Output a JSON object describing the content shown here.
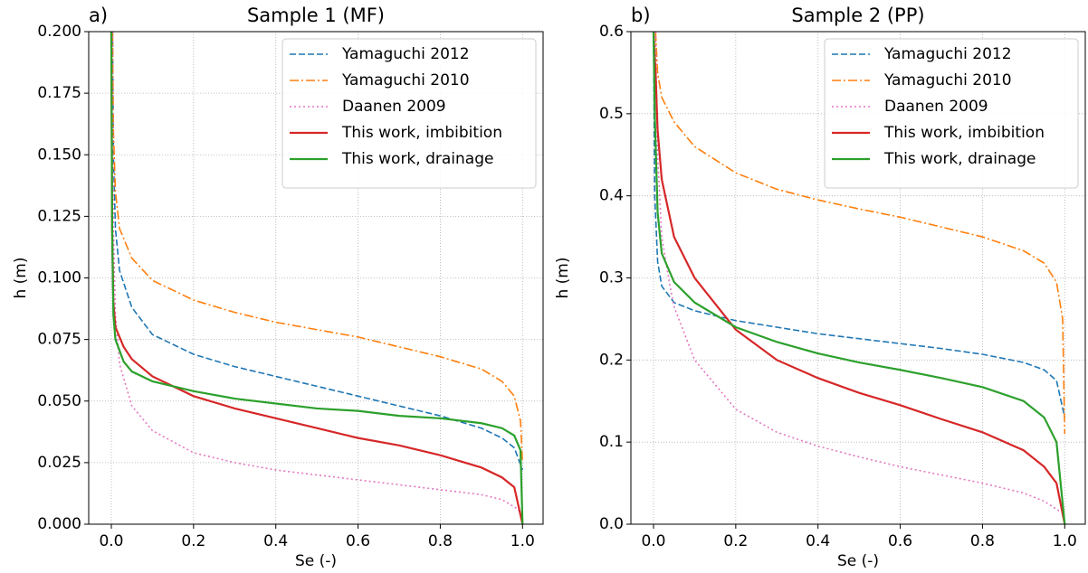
{
  "chart_data": [
    {
      "type": "line",
      "panel_label": "a)",
      "title": "Sample 1 (MF)",
      "x_label": "Se (-)",
      "y_label": "h (m)",
      "xlim": [
        -0.055,
        1.05
      ],
      "ylim": [
        0,
        0.2
      ],
      "xticks": [
        {
          "value": 0,
          "label": "0.0"
        },
        0.2,
        0.4,
        0.6,
        0.8,
        {
          "value": 1,
          "label": "1.0"
        }
      ],
      "yticks": [
        {
          "value": 0,
          "label": "0.000"
        },
        {
          "value": 0.025,
          "label": "0.025"
        },
        {
          "value": 0.05,
          "label": "0.050"
        },
        {
          "value": 0.075,
          "label": "0.075"
        },
        {
          "value": 0.1,
          "label": "0.100"
        },
        {
          "value": 0.125,
          "label": "0.125"
        },
        {
          "value": 0.15,
          "label": "0.150"
        },
        {
          "value": 0.175,
          "label": "0.175"
        },
        {
          "value": 0.2,
          "label": "0.200"
        }
      ],
      "grid": true,
      "legend": "upper right",
      "series": [
        {
          "name": "Yamaguchi 2012",
          "color": "#1f77b4",
          "dash": "dashed",
          "x": [
            0.003,
            0.005,
            0.01,
            0.02,
            0.05,
            0.1,
            0.2,
            0.3,
            0.4,
            0.5,
            0.6,
            0.7,
            0.8,
            0.9,
            0.95,
            0.98,
            1.0
          ],
          "values": [
            0.2,
            0.15,
            0.12,
            0.103,
            0.088,
            0.077,
            0.069,
            0.064,
            0.06,
            0.056,
            0.052,
            0.048,
            0.044,
            0.039,
            0.035,
            0.031,
            0.022
          ]
        },
        {
          "name": "Yamaguchi 2010",
          "color": "#ff7f0e",
          "dash": "dashdot",
          "x": [
            0.003,
            0.005,
            0.01,
            0.02,
            0.05,
            0.1,
            0.2,
            0.3,
            0.4,
            0.5,
            0.6,
            0.7,
            0.8,
            0.9,
            0.95,
            0.98,
            0.995,
            1.0
          ],
          "values": [
            0.2,
            0.16,
            0.135,
            0.12,
            0.108,
            0.099,
            0.091,
            0.086,
            0.082,
            0.079,
            0.076,
            0.072,
            0.068,
            0.063,
            0.058,
            0.052,
            0.042,
            0.025
          ]
        },
        {
          "name": "Daanen 2009",
          "color": "#e377c2",
          "dash": "dotted",
          "x": [
            0.003,
            0.005,
            0.01,
            0.02,
            0.05,
            0.1,
            0.2,
            0.3,
            0.4,
            0.5,
            0.6,
            0.7,
            0.8,
            0.9,
            0.95,
            0.99,
            1.0
          ],
          "values": [
            0.2,
            0.12,
            0.085,
            0.065,
            0.048,
            0.038,
            0.029,
            0.025,
            0.022,
            0.02,
            0.018,
            0.016,
            0.014,
            0.012,
            0.01,
            0.006,
            0.002
          ]
        },
        {
          "name": "This work, imbibition",
          "color": "#d62728",
          "dash": "solid",
          "x": [
            0,
            0.002,
            0.005,
            0.01,
            0.03,
            0.05,
            0.1,
            0.2,
            0.3,
            0.4,
            0.5,
            0.6,
            0.7,
            0.8,
            0.9,
            0.95,
            0.98,
            1.0
          ],
          "values": [
            0.2,
            0.12,
            0.09,
            0.08,
            0.072,
            0.067,
            0.06,
            0.052,
            0.047,
            0.043,
            0.039,
            0.035,
            0.032,
            0.028,
            0.023,
            0.019,
            0.015,
            0
          ]
        },
        {
          "name": "This work, drainage",
          "color": "#2ca02c",
          "dash": "solid",
          "x": [
            0,
            0.002,
            0.005,
            0.01,
            0.03,
            0.05,
            0.1,
            0.2,
            0.3,
            0.4,
            0.5,
            0.6,
            0.7,
            0.8,
            0.9,
            0.95,
            0.98,
            0.995,
            1.0
          ],
          "values": [
            0.2,
            0.12,
            0.085,
            0.075,
            0.066,
            0.062,
            0.058,
            0.054,
            0.051,
            0.049,
            0.047,
            0.046,
            0.044,
            0.043,
            0.041,
            0.039,
            0.036,
            0.03,
            0
          ]
        }
      ]
    },
    {
      "type": "line",
      "panel_label": "b)",
      "title": "Sample 2 (PP)",
      "x_label": "Se (-)",
      "y_label": "h (m)",
      "xlim": [
        -0.055,
        1.05
      ],
      "ylim": [
        0,
        0.6
      ],
      "xticks": [
        {
          "value": 0,
          "label": "0.0"
        },
        0.2,
        0.4,
        0.6,
        0.8,
        {
          "value": 1,
          "label": "1.0"
        }
      ],
      "yticks": [
        {
          "value": 0,
          "label": "0.0"
        },
        0.1,
        0.2,
        0.3,
        0.4,
        0.5,
        0.6
      ],
      "grid": true,
      "legend": "upper right",
      "series": [
        {
          "name": "Yamaguchi 2012",
          "color": "#1f77b4",
          "dash": "dashed",
          "x": [
            0,
            0.003,
            0.01,
            0.02,
            0.05,
            0.1,
            0.2,
            0.3,
            0.4,
            0.5,
            0.6,
            0.7,
            0.8,
            0.9,
            0.95,
            0.98,
            1.0
          ],
          "values": [
            0.6,
            0.4,
            0.32,
            0.29,
            0.27,
            0.26,
            0.248,
            0.24,
            0.232,
            0.226,
            0.22,
            0.214,
            0.207,
            0.197,
            0.188,
            0.175,
            0.13
          ]
        },
        {
          "name": "Yamaguchi 2010",
          "color": "#ff7f0e",
          "dash": "dashdot",
          "x": [
            0.005,
            0.01,
            0.02,
            0.05,
            0.1,
            0.2,
            0.3,
            0.4,
            0.5,
            0.6,
            0.7,
            0.8,
            0.9,
            0.95,
            0.98,
            0.995,
            1.0
          ],
          "values": [
            0.6,
            0.55,
            0.52,
            0.49,
            0.46,
            0.428,
            0.408,
            0.395,
            0.384,
            0.374,
            0.362,
            0.35,
            0.333,
            0.318,
            0.295,
            0.25,
            0.11
          ]
        },
        {
          "name": "Daanen 2009",
          "color": "#e377c2",
          "dash": "dotted",
          "x": [
            0.005,
            0.01,
            0.02,
            0.04,
            0.05,
            0.1,
            0.2,
            0.3,
            0.4,
            0.5,
            0.6,
            0.7,
            0.8,
            0.9,
            0.95,
            0.99
          ],
          "values": [
            0.6,
            0.45,
            0.35,
            0.29,
            0.265,
            0.2,
            0.14,
            0.112,
            0.095,
            0.082,
            0.07,
            0.06,
            0.05,
            0.038,
            0.028,
            0.015
          ]
        },
        {
          "name": "This work, imbibition",
          "color": "#d62728",
          "dash": "solid",
          "x": [
            0,
            0.005,
            0.01,
            0.02,
            0.05,
            0.1,
            0.2,
            0.3,
            0.4,
            0.5,
            0.6,
            0.7,
            0.8,
            0.9,
            0.95,
            0.98,
            1.0
          ],
          "values": [
            0.6,
            0.55,
            0.48,
            0.42,
            0.35,
            0.3,
            0.237,
            0.2,
            0.178,
            0.16,
            0.145,
            0.128,
            0.112,
            0.09,
            0.07,
            0.05,
            0
          ]
        },
        {
          "name": "This work, drainage",
          "color": "#2ca02c",
          "dash": "solid",
          "x": [
            0,
            0.003,
            0.01,
            0.02,
            0.05,
            0.1,
            0.2,
            0.3,
            0.4,
            0.5,
            0.6,
            0.7,
            0.8,
            0.9,
            0.95,
            0.98,
            1.0
          ],
          "values": [
            0.6,
            0.5,
            0.38,
            0.33,
            0.295,
            0.27,
            0.24,
            0.222,
            0.208,
            0.197,
            0.188,
            0.178,
            0.167,
            0.15,
            0.13,
            0.1,
            0
          ]
        }
      ]
    }
  ]
}
